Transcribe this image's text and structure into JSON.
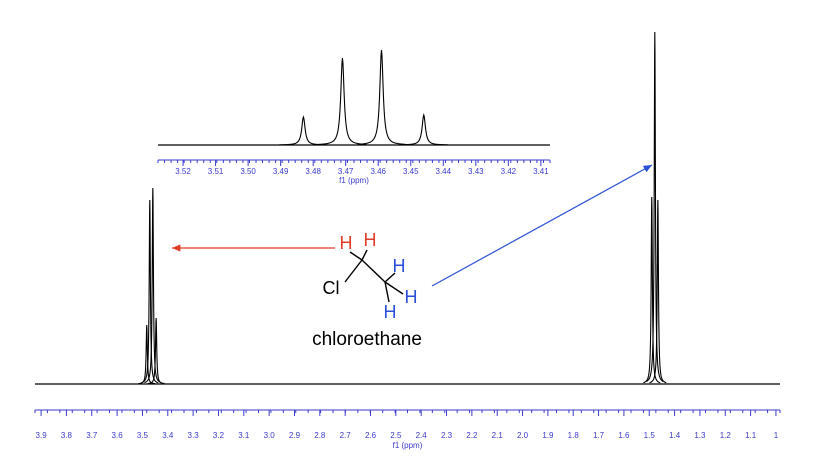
{
  "chart_data": [
    {
      "type": "nmr",
      "x_label": "f1 (ppm)",
      "color": "#000000",
      "axis_color": "#3a3acc",
      "xlim": [
        3.924,
        0.984
      ],
      "xticks": [
        3.9,
        3.8,
        3.7,
        3.6,
        3.5,
        3.4,
        3.3,
        3.2,
        3.1,
        {
          "value": 3,
          "label": "3.0"
        },
        2.9,
        2.8,
        2.7,
        2.6,
        2.5,
        2.4,
        2.3,
        2.2,
        2.1,
        {
          "value": 2,
          "label": "2.0"
        },
        1.9,
        1.8,
        1.7,
        1.6,
        1.5,
        1.4,
        1.3,
        1.2,
        1.1,
        1
      ],
      "x": [
        3.483,
        3.471,
        3.459,
        3.446,
        1.49,
        1.478,
        1.466
      ],
      "values": [
        59,
        184,
        196,
        66,
        187,
        352,
        184
      ],
      "ylim": [
        0,
        360
      ]
    },
    {
      "type": "nmr",
      "x_label": "f1 (ppm)",
      "color": "#000000",
      "axis_color": "#3a3acc",
      "xlim": [
        3.5277,
        3.4072
      ],
      "xticks": [
        3.52,
        3.51,
        {
          "value": 3.5,
          "label": "3.50"
        },
        3.49,
        3.48,
        3.47,
        3.46,
        3.45,
        3.44,
        3.43,
        3.42,
        3.41
      ],
      "x": [
        3.483,
        3.471,
        3.459,
        3.446
      ],
      "values": [
        28,
        87,
        95,
        30
      ],
      "ylim": [
        0,
        100
      ]
    }
  ],
  "annotations": {
    "atoms": [
      "Cl",
      "H",
      "H",
      "H",
      "H",
      "H"
    ],
    "molecule_name": "chloroethane"
  }
}
